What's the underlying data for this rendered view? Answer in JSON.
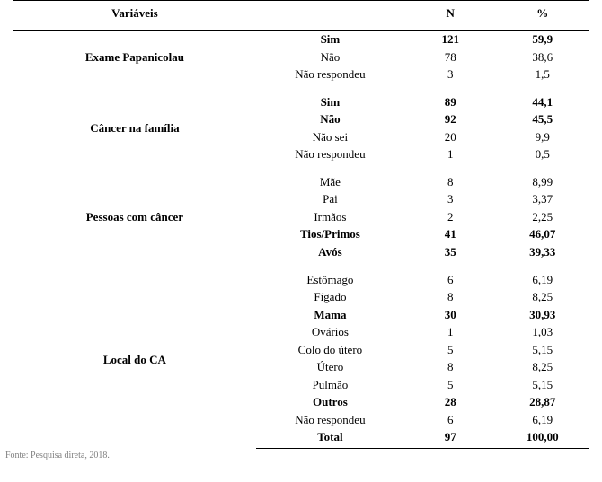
{
  "header": {
    "var": "Variáveis",
    "n": "N",
    "pct": "%"
  },
  "groups": [
    {
      "label": "Exame Papanicolau",
      "rows": [
        {
          "cat": "Sim",
          "n": "121",
          "pct": "59,9",
          "bold": true
        },
        {
          "cat": "Não",
          "n": "78",
          "pct": "38,6",
          "bold": false
        },
        {
          "cat": "Não respondeu",
          "n": "3",
          "pct": "1,5",
          "bold": false
        }
      ]
    },
    {
      "label": "Câncer na família",
      "rows": [
        {
          "cat": "Sim",
          "n": "89",
          "pct": "44,1",
          "bold": true
        },
        {
          "cat": "Não",
          "n": "92",
          "pct": "45,5",
          "bold": true
        },
        {
          "cat": "Não sei",
          "n": "20",
          "pct": "9,9",
          "bold": false
        },
        {
          "cat": "Não respondeu",
          "n": "1",
          "pct": "0,5",
          "bold": false
        }
      ]
    },
    {
      "label": "Pessoas com câncer",
      "rows": [
        {
          "cat": "Mãe",
          "n": "8",
          "pct": "8,99",
          "bold": false
        },
        {
          "cat": "Pai",
          "n": "3",
          "pct": "3,37",
          "bold": false
        },
        {
          "cat": "Irmãos",
          "n": "2",
          "pct": "2,25",
          "bold": false
        },
        {
          "cat": "Tios/Primos",
          "n": "41",
          "pct": "46,07",
          "bold": true
        },
        {
          "cat": "Avós",
          "n": "35",
          "pct": "39,33",
          "bold": true
        }
      ]
    },
    {
      "label": "Local do CA",
      "rows": [
        {
          "cat": "Estômago",
          "n": "6",
          "pct": "6,19",
          "bold": false
        },
        {
          "cat": "Fígado",
          "n": "8",
          "pct": "8,25",
          "bold": false
        },
        {
          "cat": "Mama",
          "n": "30",
          "pct": "30,93",
          "bold": true
        },
        {
          "cat": "Ovários",
          "n": "1",
          "pct": "1,03",
          "bold": false
        },
        {
          "cat": "Colo do útero",
          "n": "5",
          "pct": "5,15",
          "bold": false
        },
        {
          "cat": "Útero",
          "n": "8",
          "pct": "8,25",
          "bold": false
        },
        {
          "cat": "Pulmão",
          "n": "5",
          "pct": "5,15",
          "bold": false
        },
        {
          "cat": "Outros",
          "n": "28",
          "pct": "28,87",
          "bold": true
        },
        {
          "cat": "Não respondeu",
          "n": "6",
          "pct": "6,19",
          "bold": false
        },
        {
          "cat": "Total",
          "n": "97",
          "pct": "100,00",
          "bold": true
        }
      ]
    }
  ],
  "source": "Fonte: Pesquisa direta, 2018."
}
